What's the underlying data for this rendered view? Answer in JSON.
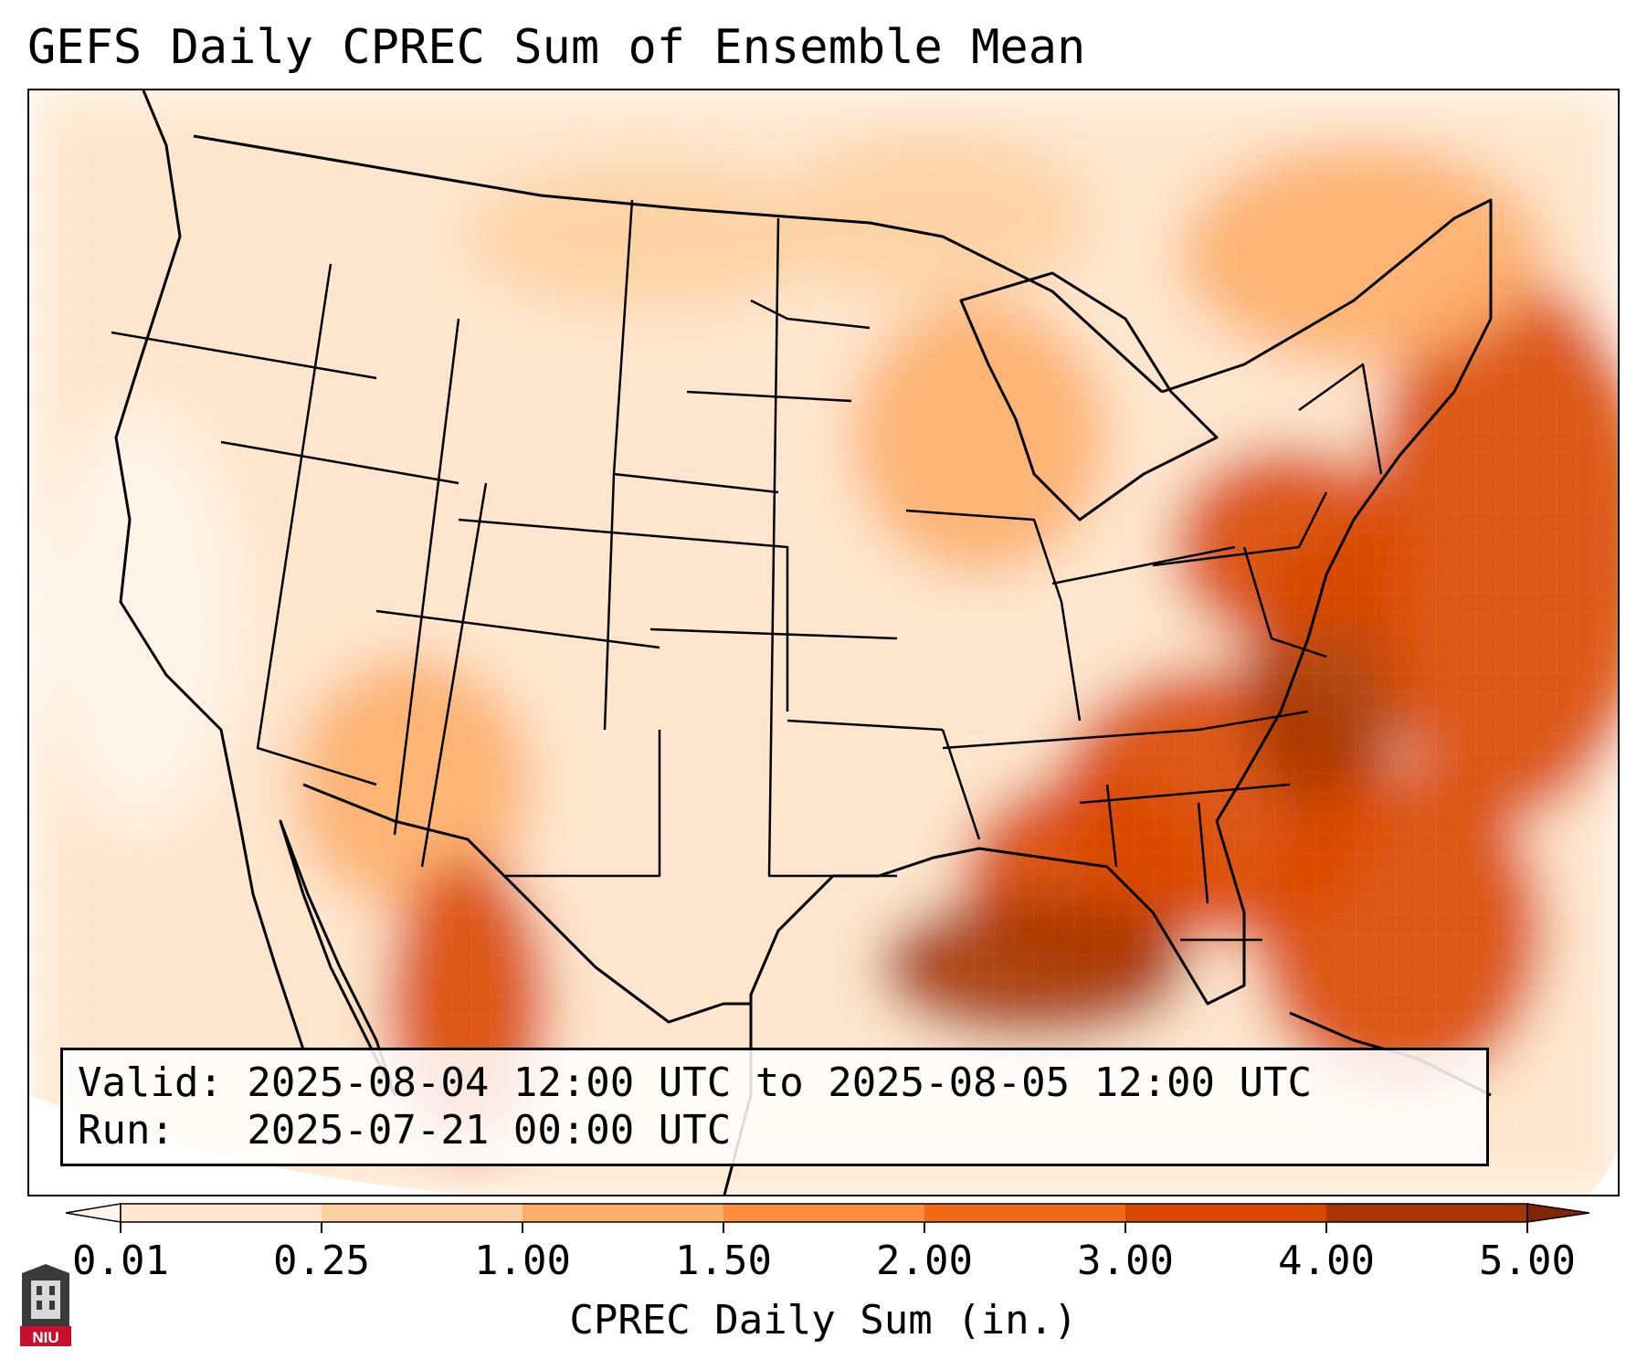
{
  "title": "GEFS Daily CPREC Sum of Ensemble Mean",
  "valid_line": "Valid: 2025-08-04 12:00 UTC to 2025-08-05 12:00 UTC",
  "run_line": "Run:   2025-07-21 00:00 UTC",
  "colorbar": {
    "label": "CPREC Daily Sum (in.)",
    "ticks": [
      "0.01",
      "0.25",
      "1.00",
      "1.50",
      "2.00",
      "3.00",
      "4.00",
      "5.00"
    ],
    "colors": [
      "#fff5eb",
      "#fee6ce",
      "#fdd0a2",
      "#fdae6b",
      "#fd8d3c",
      "#f16913",
      "#d94801",
      "#a63603",
      "#7f2704"
    ],
    "extend": "both"
  },
  "logo": {
    "text": "NIU",
    "color": "#c8102e"
  },
  "regions": {
    "pacific_northwest": "light",
    "california": "trace",
    "great_basin": "light",
    "rockies": "light",
    "southwest_monsoon": "moderate",
    "sierra_madre_mexico": "heavy",
    "northern_plains": "light-moderate",
    "upper_midwest": "moderate",
    "southern_plains": "light",
    "southeast": "heavy",
    "gulf_coast": "very-heavy",
    "mid_atlantic": "heavy",
    "western_atlantic": "heavy",
    "canada_east": "moderate"
  }
}
